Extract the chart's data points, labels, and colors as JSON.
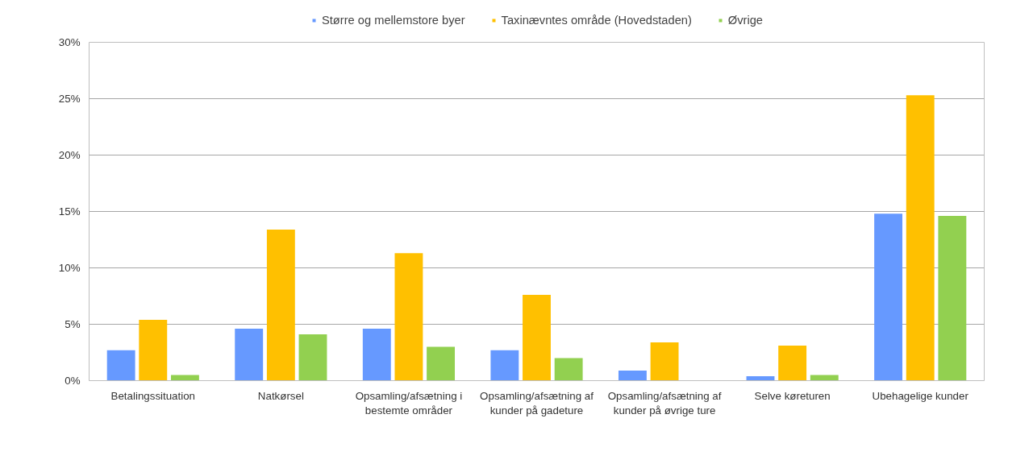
{
  "chart_data": {
    "type": "bar",
    "categories": [
      "Betalingssituation",
      "Natkørsel",
      "Opsamling/afsætning i bestemte områder",
      "Opsamling/afsætning af kunder på gadeture",
      "Opsamling/afsætning af kunder på øvrige ture",
      "Selve køreturen",
      "Ubehagelige kunder"
    ],
    "series": [
      {
        "name": "Større og mellemstore byer",
        "color": "#6699ff",
        "values": [
          2.7,
          4.6,
          4.6,
          2.7,
          0.9,
          0.4,
          14.8
        ]
      },
      {
        "name": "Taxinævntes område (Hovedstaden)",
        "color": "#ffc000",
        "values": [
          5.4,
          13.4,
          11.3,
          7.6,
          3.4,
          3.1,
          25.3
        ]
      },
      {
        "name": "Øvrige",
        "color": "#92d050",
        "values": [
          0.5,
          4.1,
          3.0,
          2.0,
          0,
          0.5,
          14.6
        ]
      }
    ],
    "ylim": [
      0,
      30
    ],
    "yticks": [
      {
        "value": 0,
        "label": "0%"
      },
      {
        "value": 5,
        "label": "5%"
      },
      {
        "value": 10,
        "label": "10%"
      },
      {
        "value": 15,
        "label": "15%"
      },
      {
        "value": 20,
        "label": "20%"
      },
      {
        "value": 25,
        "label": "25%"
      },
      {
        "value": 30,
        "label": "30%"
      }
    ],
    "grid": "y",
    "legend": "top"
  }
}
